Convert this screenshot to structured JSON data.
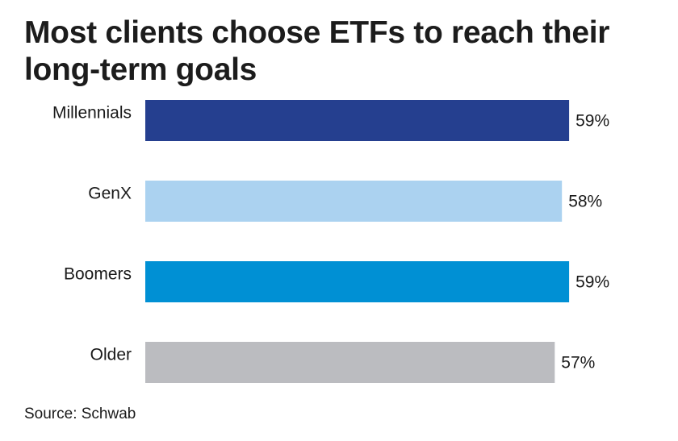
{
  "chart_data": {
    "type": "bar",
    "orientation": "horizontal",
    "title": "Most clients choose ETFs to reach their long-term goals",
    "categories": [
      "Millennials",
      "GenX",
      "Boomers",
      "Older"
    ],
    "values": [
      59,
      58,
      59,
      57
    ],
    "value_labels": [
      "59%",
      "58%",
      "59%",
      "57%"
    ],
    "colors": [
      "#253f8f",
      "#abd2f0",
      "#0090d4",
      "#bbbcc0"
    ],
    "unit": "%",
    "grid": false,
    "legend": "none",
    "source": "Source: Schwab"
  }
}
